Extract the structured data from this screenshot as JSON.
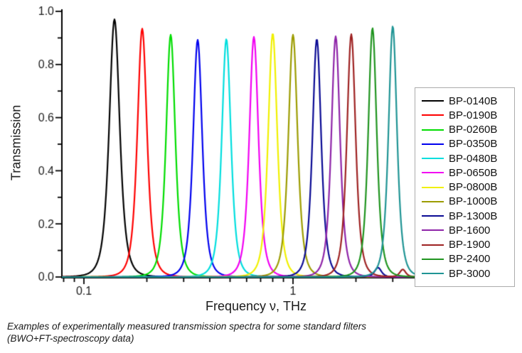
{
  "figure": {
    "y_axis_title": "Transmission",
    "x_axis_title": "Frequency ν, THz"
  },
  "caption": {
    "line1": "Examples of experimentally measured transmission spectra for some standard filters",
    "line2": "(BWO+FT-spectroscopy data)"
  },
  "chart_data": {
    "type": "line",
    "title": "",
    "xlabel": "Frequency ν, THz",
    "ylabel": "Transmission",
    "x_scale": "log10",
    "xlim": [
      0.078,
      4.05
    ],
    "ylim": [
      0.0,
      1.0
    ],
    "grid": false,
    "legend_position": "right-outside-box",
    "x_major_ticks": [
      0.1,
      1
    ],
    "x_major_tick_labels": [
      "0.1",
      "1"
    ],
    "x_minor_ticks": [
      0.08,
      0.09,
      0.2,
      0.3,
      0.4,
      0.5,
      0.6,
      0.7,
      0.8,
      0.9,
      2,
      3,
      4
    ],
    "y_major_ticks": [
      0.0,
      0.2,
      0.4,
      0.6,
      0.8,
      1.0
    ],
    "y_major_tick_labels": [
      "0.0",
      "0.2",
      "0.4",
      "0.6",
      "0.8",
      "1.0"
    ],
    "y_minor_ticks": [
      0.1,
      0.3,
      0.5,
      0.7,
      0.9
    ],
    "curve_profile": "lorentzian_squared_in_log10_frequency",
    "series": [
      {
        "name": "BP-0140B",
        "color": "#000000",
        "center_thz": 0.14,
        "peak_transmission": 0.97,
        "width_log10": 0.046
      },
      {
        "name": "BP-0190B",
        "color": "#fe0000",
        "center_thz": 0.19,
        "peak_transmission": 0.935,
        "width_log10": 0.042
      },
      {
        "name": "BP-0260B",
        "color": "#00dd00",
        "center_thz": 0.26,
        "peak_transmission": 0.912,
        "width_log10": 0.04
      },
      {
        "name": "BP-0350B",
        "color": "#0000ee",
        "center_thz": 0.35,
        "peak_transmission": 0.893,
        "width_log10": 0.04
      },
      {
        "name": "BP-0480B",
        "color": "#00dede",
        "center_thz": 0.48,
        "peak_transmission": 0.896,
        "width_log10": 0.04
      },
      {
        "name": "BP-0650B",
        "color": "#f200f2",
        "center_thz": 0.65,
        "peak_transmission": 0.904,
        "width_log10": 0.04
      },
      {
        "name": "BP-0800B",
        "color": "#f0f000",
        "center_thz": 0.8,
        "peak_transmission": 0.917,
        "width_log10": 0.04
      },
      {
        "name": "BP-1000B",
        "color": "#9c9c00",
        "center_thz": 1.0,
        "peak_transmission": 0.912,
        "width_log10": 0.04
      },
      {
        "name": "BP-1300B",
        "color": "#0a0a94",
        "center_thz": 1.3,
        "peak_transmission": 0.896,
        "width_log10": 0.038,
        "side_lobe": {
          "center_thz": 2.55,
          "peak_transmission": 0.035,
          "width_log10": 0.03
        }
      },
      {
        "name": "BP-1600",
        "color": "#8e24a8",
        "center_thz": 1.6,
        "peak_transmission": 0.906,
        "width_log10": 0.038
      },
      {
        "name": "BP-1900",
        "color": "#9e2222",
        "center_thz": 1.9,
        "peak_transmission": 0.914,
        "width_log10": 0.038,
        "side_lobe": {
          "center_thz": 3.35,
          "peak_transmission": 0.028,
          "width_log10": 0.026
        }
      },
      {
        "name": "BP-2400",
        "color": "#1f941f",
        "center_thz": 2.4,
        "peak_transmission": 0.937,
        "width_log10": 0.037
      },
      {
        "name": "BP-3000",
        "color": "#1f9494",
        "center_thz": 3.0,
        "peak_transmission": 0.944,
        "width_log10": 0.037
      }
    ]
  }
}
